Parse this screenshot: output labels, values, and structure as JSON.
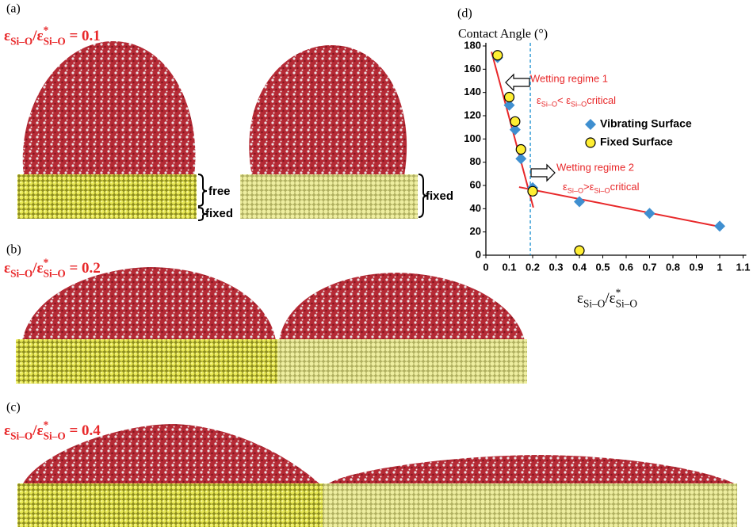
{
  "panels": [
    {
      "label": "(a)",
      "ratio": [
        "ε",
        "Si–O",
        "/ε",
        "*",
        "Si–O",
        " = 0.1"
      ],
      "side_labels": [
        "free",
        "fixed",
        "fixed"
      ]
    },
    {
      "label": "(b)",
      "ratio": [
        "ε",
        "Si–O",
        "/ε",
        "*",
        "Si–O",
        " = 0.2"
      ]
    },
    {
      "label": "(c)",
      "ratio": [
        "ε",
        "Si–O",
        "/ε",
        "*",
        "Si–O",
        " = 0.4"
      ]
    }
  ],
  "chart_data": {
    "type": "scatter",
    "panel_label": "(d)",
    "ylabel": "Contact Angle (°)",
    "xlabel": [
      "ε",
      "Si–O",
      "/ε",
      "*",
      "Si–O"
    ],
    "xlim": [
      0,
      1.1
    ],
    "xticks": [
      0,
      0.1,
      0.2,
      0.3,
      0.4,
      0.5,
      0.6,
      0.7,
      0.8,
      0.9,
      1,
      1.1
    ],
    "ylim": [
      0,
      180
    ],
    "yticks": [
      0,
      20,
      40,
      60,
      80,
      100,
      120,
      140,
      160,
      180
    ],
    "series": [
      {
        "name": "Vibrating Surface",
        "color": "#3f8fd0",
        "marker": "diamond",
        "x": [
          0.05,
          0.1,
          0.125,
          0.15,
          0.2,
          0.4,
          0.7,
          1.0
        ],
        "values": [
          170,
          129,
          108,
          83,
          58,
          46,
          36,
          25
        ]
      },
      {
        "name": "Fixed Surface",
        "color": "#ffee33",
        "marker": "circle",
        "x": [
          0.05,
          0.1,
          0.125,
          0.15,
          0.2,
          0.4
        ],
        "values": [
          172,
          136,
          115,
          91,
          55,
          4
        ]
      }
    ],
    "fit_lines": [
      {
        "color": "#e8282a",
        "x": [
          0.024,
          0.203
        ],
        "values": [
          175,
          41
        ]
      },
      {
        "color": "#e8282a",
        "x": [
          0.142,
          1.0
        ],
        "values": [
          58.6,
          24.5
        ]
      }
    ],
    "reference_line": {
      "x": 0.19,
      "color": "#1a8fcf"
    },
    "annotations": [
      "Wetting regime 1",
      "Wetting regime 2"
    ],
    "conditions": [
      [
        "ε",
        "Si–O",
        "< ε",
        "Si–O",
        "critical"
      ],
      [
        "ε",
        "Si–O",
        ">ε",
        "Si–O",
        "critical"
      ]
    ]
  }
}
